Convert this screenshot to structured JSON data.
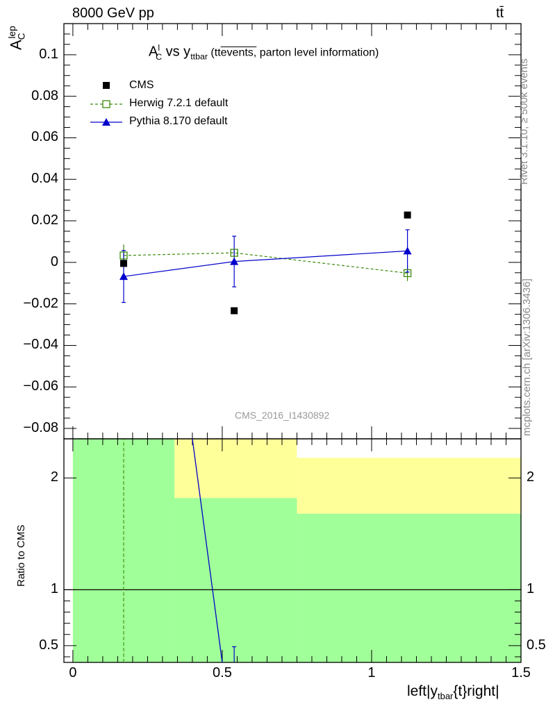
{
  "header": {
    "left": "8000 GeV pp",
    "right": "tt̄"
  },
  "side_labels": {
    "rivet": "Rivet 3.1.10, ≥ 500k events",
    "mcplots": "mcplots.cern.ch [arXiv:1306.3436]"
  },
  "watermark": "CMS_2016_I1430892",
  "title": {
    "main": "A",
    "sup": "l",
    "sub": "C",
    "vs": " vs y",
    "vs_sub": "ttbar",
    "paren_open": " (tt",
    "overline_text": "events,",
    "paren_rest": " parton level information)"
  },
  "ylabel_top": {
    "main": "A",
    "sub": "C",
    "sup": "lep"
  },
  "ylabel_bottom": "Ratio to CMS",
  "xlabel": {
    "pre": "left|y",
    "sub": "tbar",
    "post": "{t}right|"
  },
  "legend": [
    {
      "name": "CMS",
      "color": "#000000",
      "marker": "filled-square",
      "line": "none"
    },
    {
      "name": "Herwig 7.2.1 default",
      "color": "#3a8a0a",
      "marker": "open-square",
      "line": "dashed"
    },
    {
      "name": "Pythia 8.170 default",
      "color": "#0000cc",
      "marker": "filled-triangle",
      "line": "solid"
    }
  ],
  "colors": {
    "band_green": "#a0ff98",
    "band_yellow": "#ffff9a",
    "cms": "#000000",
    "herwig": "#3a8a0a",
    "pythia": "#0000cc"
  },
  "chart_data": [
    {
      "type": "scatter",
      "panel": "main",
      "xlim": [
        -0.03,
        1.5
      ],
      "ylim": [
        -0.085,
        0.115
      ],
      "yticks": [
        -0.08,
        -0.06,
        -0.04,
        -0.02,
        0,
        0.02,
        0.04,
        0.06,
        0.08,
        0.1
      ],
      "ytick_labels": [
        "−0.08",
        "−0.06",
        "−0.04",
        "−0.02",
        "0",
        "0.02",
        "0.04",
        "0.06",
        "0.08",
        "0.1"
      ],
      "series": [
        {
          "name": "CMS",
          "x": [
            0.17,
            0.54,
            1.12
          ],
          "y": [
            -0.0005,
            -0.0233,
            0.0228
          ],
          "yerr": [
            0,
            0,
            0
          ]
        },
        {
          "name": "Herwig 7.2.1 default",
          "x": [
            0.17,
            0.54,
            1.12
          ],
          "y": [
            0.0033,
            0.0046,
            -0.0052
          ],
          "yerr": [
            0.0053,
            0.0015,
            0.0038
          ]
        },
        {
          "name": "Pythia 8.170 default",
          "x": [
            0.17,
            0.54,
            1.12
          ],
          "y": [
            -0.0068,
            0.0004,
            0.0055
          ],
          "yerr": [
            0.0125,
            0.0122,
            0.0102
          ]
        }
      ]
    },
    {
      "type": "line",
      "panel": "ratio",
      "xlim": [
        -0.03,
        1.5
      ],
      "ylim": [
        0.35,
        2.35
      ],
      "yticks": [
        0.5,
        1,
        2
      ],
      "ytick_labels": [
        "0.5",
        "1",
        "2"
      ],
      "xticks": [
        0,
        0.5,
        1,
        1.5
      ],
      "xtick_labels": [
        "0",
        "0.5",
        "1",
        "1.5"
      ],
      "reference_line": 1,
      "yellow_band": [
        {
          "x0": 0,
          "x1": 0.34,
          "ylow": 0,
          "yhigh": 2.35
        },
        {
          "x0": 0.34,
          "x1": 0.75,
          "ylow": 1.82,
          "yhigh": 2.35
        },
        {
          "x0": 0.75,
          "x1": 1.5,
          "ylow": 1.68,
          "yhigh": 2.18
        }
      ],
      "green_band": [
        {
          "x0": 0,
          "x1": 0.34,
          "ylow": 0,
          "yhigh": 2.35
        },
        {
          "x0": 0.34,
          "x1": 0.75,
          "ylow": 0,
          "yhigh": 1.82
        },
        {
          "x0": 0.75,
          "x1": 1.5,
          "ylow": 0,
          "yhigh": 1.68
        }
      ],
      "series": [
        {
          "name": "Herwig 7.2.1 default",
          "style": "dashed-vertical",
          "x": [
            0.17,
            0.17
          ],
          "y": [
            0.35,
            2.35
          ]
        },
        {
          "name": "Pythia 8.170 default",
          "style": "solid",
          "x": [
            0.4,
            0.5
          ],
          "y": [
            2.35,
            0.35
          ]
        },
        {
          "name": "Pythia 8.170 default error",
          "style": "errorbar",
          "x": [
            0.54
          ],
          "ylow": [
            0.35
          ],
          "yhigh": [
            0.49
          ]
        }
      ]
    }
  ]
}
